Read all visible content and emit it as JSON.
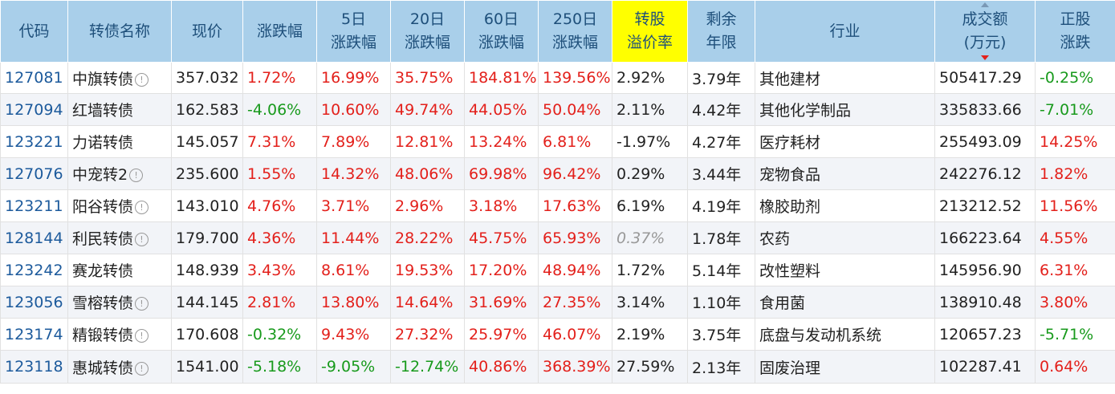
{
  "headers": [
    {
      "key": "code",
      "label": "代码"
    },
    {
      "key": "name",
      "label": "转债名称"
    },
    {
      "key": "price",
      "label": "现价"
    },
    {
      "key": "chg",
      "label": "涨跌幅"
    },
    {
      "key": "chg5",
      "label": "5日\n涨跌幅"
    },
    {
      "key": "chg20",
      "label": "20日\n涨跌幅"
    },
    {
      "key": "chg60",
      "label": "60日\n涨跌幅"
    },
    {
      "key": "chg250",
      "label": "250日\n涨跌幅"
    },
    {
      "key": "premium",
      "label": "转股\n溢价率"
    },
    {
      "key": "years",
      "label": "剩余\n年限"
    },
    {
      "key": "industry",
      "label": "行业"
    },
    {
      "key": "volume",
      "label": "成交额\n(万元)"
    },
    {
      "key": "stock_chg",
      "label": "正股\n涨跌"
    }
  ],
  "colors": {
    "header_bg": "#a9cfea",
    "highlight": "#ffff00",
    "up": "#e3201b",
    "down": "#189a1c",
    "code": "#1c5a9c"
  },
  "rows": [
    {
      "code": "127081",
      "name": "中旗转债",
      "info": true,
      "price": "357.032",
      "chg": "1.72%",
      "chg5": "16.99%",
      "chg20": "35.75%",
      "chg60": "184.81%",
      "chg250": "139.56%",
      "premium": "2.92%",
      "years": "3.79年",
      "industry": "其他建材",
      "volume": "505417.29",
      "stock_chg": "-0.25%"
    },
    {
      "code": "127094",
      "name": "红墙转债",
      "info": false,
      "price": "162.583",
      "chg": "-4.06%",
      "chg5": "10.60%",
      "chg20": "49.74%",
      "chg60": "44.05%",
      "chg250": "50.04%",
      "premium": "2.11%",
      "years": "4.42年",
      "industry": "其他化学制品",
      "volume": "335833.66",
      "stock_chg": "-7.01%"
    },
    {
      "code": "123221",
      "name": "力诺转债",
      "info": false,
      "price": "145.057",
      "chg": "7.31%",
      "chg5": "7.89%",
      "chg20": "12.81%",
      "chg60": "13.24%",
      "chg250": "6.81%",
      "premium": "-1.97%",
      "years": "4.27年",
      "industry": "医疗耗材",
      "volume": "255493.09",
      "stock_chg": "14.25%"
    },
    {
      "code": "127076",
      "name": "中宠转2",
      "info": true,
      "price": "235.600",
      "chg": "1.55%",
      "chg5": "14.32%",
      "chg20": "48.06%",
      "chg60": "69.98%",
      "chg250": "96.42%",
      "premium": "0.29%",
      "years": "3.44年",
      "industry": "宠物食品",
      "volume": "242276.12",
      "stock_chg": "1.82%"
    },
    {
      "code": "123211",
      "name": "阳谷转债",
      "info": true,
      "price": "143.010",
      "chg": "4.76%",
      "chg5": "3.71%",
      "chg20": "2.96%",
      "chg60": "3.18%",
      "chg250": "17.63%",
      "premium": "6.19%",
      "years": "4.19年",
      "industry": "橡胶助剂",
      "volume": "213212.52",
      "stock_chg": "11.56%"
    },
    {
      "code": "128144",
      "name": "利民转债",
      "info": true,
      "price": "179.700",
      "chg": "4.36%",
      "chg5": "11.44%",
      "chg20": "28.22%",
      "chg60": "45.75%",
      "chg250": "65.93%",
      "premium": "0.37%",
      "premium_muted": true,
      "years": "1.78年",
      "industry": "农药",
      "volume": "166223.64",
      "stock_chg": "4.55%"
    },
    {
      "code": "123242",
      "name": "赛龙转债",
      "info": false,
      "price": "148.939",
      "chg": "3.43%",
      "chg5": "8.61%",
      "chg20": "19.53%",
      "chg60": "17.20%",
      "chg250": "48.94%",
      "premium": "1.72%",
      "years": "5.14年",
      "industry": "改性塑料",
      "volume": "145956.90",
      "stock_chg": "6.31%"
    },
    {
      "code": "123056",
      "name": "雪榕转债",
      "info": true,
      "price": "144.145",
      "chg": "2.81%",
      "chg5": "13.80%",
      "chg20": "14.64%",
      "chg60": "31.69%",
      "chg250": "27.35%",
      "premium": "3.14%",
      "years": "1.10年",
      "industry": "食用菌",
      "volume": "138910.48",
      "stock_chg": "3.80%"
    },
    {
      "code": "123174",
      "name": "精锻转债",
      "info": true,
      "price": "170.608",
      "chg": "-0.32%",
      "chg5": "9.43%",
      "chg20": "27.32%",
      "chg60": "25.97%",
      "chg250": "46.07%",
      "premium": "2.19%",
      "years": "3.75年",
      "industry": "底盘与发动机系统",
      "volume": "120657.23",
      "stock_chg": "-5.71%"
    },
    {
      "code": "123118",
      "name": "惠城转债",
      "info": true,
      "price": "1541.00",
      "chg": "-5.18%",
      "chg5": "-9.05%",
      "chg20": "-12.74%",
      "chg60": "40.86%",
      "chg250": "368.39%",
      "premium": "27.59%",
      "years": "2.13年",
      "industry": "固废治理",
      "volume": "102287.41",
      "stock_chg": "0.64%"
    }
  ]
}
